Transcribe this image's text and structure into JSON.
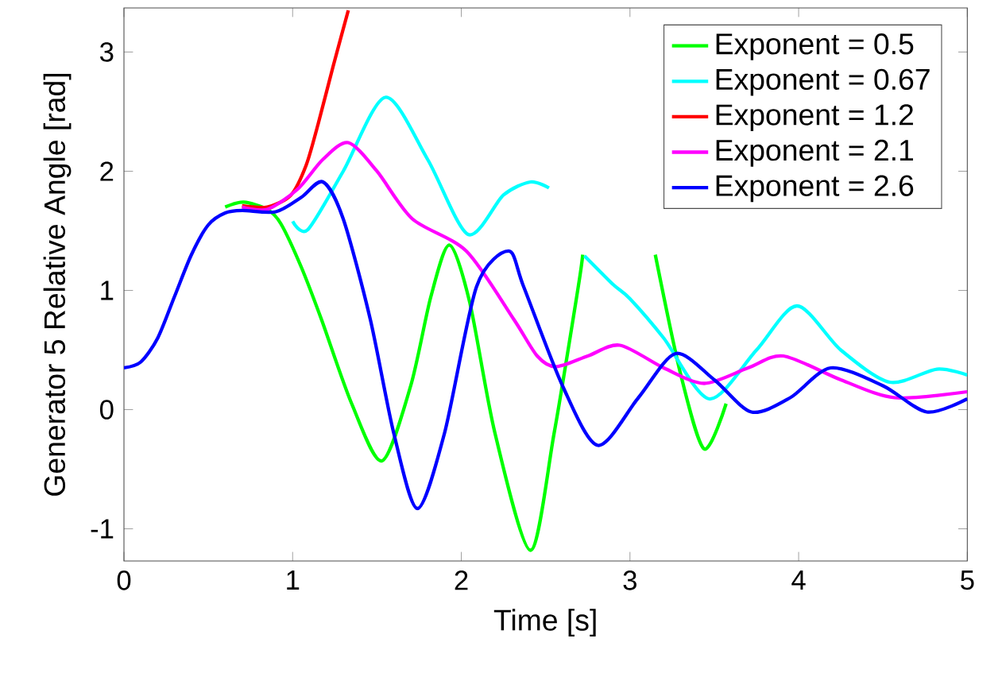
{
  "chart_data": {
    "type": "line",
    "xlabel": "Time [s]",
    "ylabel": "Generator 5 Relative Angle [rad]",
    "xlim": [
      0,
      5
    ],
    "ylim": [
      -1.27,
      3.37
    ],
    "xticks": [
      0,
      1,
      2,
      3,
      4,
      5
    ],
    "yticks": [
      -1,
      0,
      1,
      2,
      3
    ],
    "legend": "top right",
    "grid": false,
    "marker": "none",
    "line_style": "solid",
    "series": [
      {
        "name": "Exponent = 0.5",
        "color": "#00ff00",
        "x": [
          0.6,
          0.71,
          0.85,
          0.93,
          1.05,
          1.17,
          1.35,
          1.53,
          1.7,
          1.82,
          1.93,
          2.05,
          2.2,
          2.41,
          2.55,
          2.69,
          2.72,
          2.9,
          3.15,
          3.3,
          3.44,
          3.57
        ],
        "values": [
          1.7,
          1.74,
          1.68,
          1.56,
          1.2,
          0.76,
          0.05,
          -0.43,
          0.2,
          0.95,
          1.38,
          0.9,
          -0.2,
          -1.18,
          -0.2,
          1.0,
          1.3,
          null,
          1.3,
          0.3,
          -0.33,
          0.05
        ]
      },
      {
        "name": "Exponent = 0.67",
        "color": "#00ffff",
        "x": [
          1.0,
          1.09,
          1.3,
          1.55,
          1.8,
          2.04,
          2.25,
          2.41,
          2.52,
          2.62,
          2.73,
          2.9,
          3.0,
          3.2,
          3.47,
          3.75,
          3.99,
          4.25,
          4.54,
          4.82,
          5.0
        ],
        "values": [
          1.58,
          1.51,
          2.0,
          2.62,
          2.1,
          1.47,
          1.8,
          1.91,
          1.86,
          null,
          1.29,
          1.05,
          0.93,
          0.6,
          0.09,
          0.5,
          0.87,
          0.5,
          0.23,
          0.34,
          0.29
        ]
      },
      {
        "name": "Exponent = 1.2",
        "color": "#ff0000",
        "x": [
          0.7,
          0.85,
          0.99,
          1.08,
          1.15,
          1.24,
          1.33
        ],
        "values": [
          1.71,
          1.7,
          1.8,
          2.05,
          2.39,
          2.88,
          3.35
        ]
      },
      {
        "name": "Exponent = 2.1",
        "color": "#ff00ff",
        "x": [
          0.7,
          0.85,
          1.03,
          1.18,
          1.33,
          1.5,
          1.71,
          2.03,
          2.31,
          2.45,
          2.56,
          2.75,
          2.94,
          3.2,
          3.44,
          3.7,
          3.91,
          4.25,
          4.57,
          5.0
        ],
        "values": [
          1.7,
          1.68,
          1.85,
          2.1,
          2.24,
          2.0,
          1.6,
          1.33,
          0.76,
          0.45,
          0.36,
          0.45,
          0.54,
          0.35,
          0.22,
          0.35,
          0.45,
          0.25,
          0.1,
          0.15
        ]
      },
      {
        "name": "Exponent = 2.6",
        "color": "#0000ff",
        "x": [
          0,
          0.1,
          0.2,
          0.3,
          0.4,
          0.5,
          0.6,
          0.7,
          0.9,
          1.05,
          1.18,
          1.3,
          1.46,
          1.6,
          1.74,
          1.9,
          2.09,
          2.28,
          2.37,
          2.6,
          2.81,
          3.05,
          3.27,
          3.5,
          3.72,
          3.95,
          4.19,
          4.5,
          4.76,
          5.0
        ],
        "values": [
          0.35,
          0.4,
          0.6,
          0.95,
          1.3,
          1.55,
          1.65,
          1.67,
          1.66,
          1.78,
          1.91,
          1.6,
          0.76,
          -0.2,
          -0.83,
          -0.2,
          1.03,
          1.33,
          1.03,
          0.2,
          -0.3,
          0.1,
          0.47,
          0.25,
          -0.02,
          0.1,
          0.35,
          0.2,
          -0.02,
          0.09
        ]
      }
    ]
  }
}
